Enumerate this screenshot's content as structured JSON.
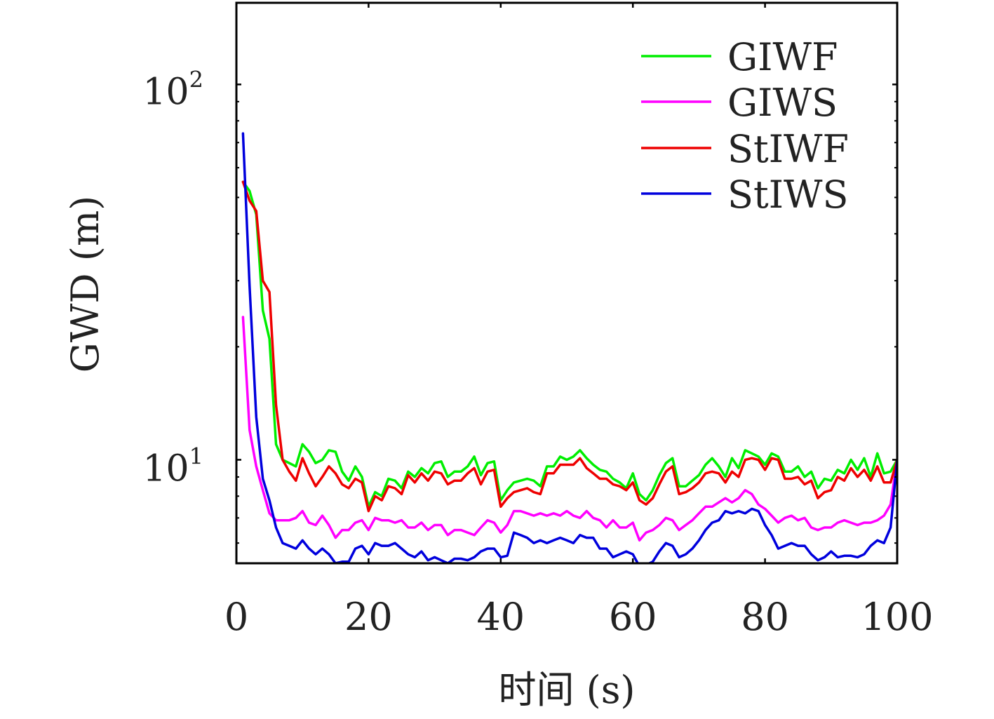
{
  "chart_data": {
    "type": "line",
    "xlabel": "时间 (s)",
    "ylabel": "GWD (m)",
    "xlim": [
      0,
      100
    ],
    "ylim": [
      5.3,
      165
    ],
    "y_scale": "log",
    "x_ticks": [
      0,
      20,
      40,
      60,
      80,
      100
    ],
    "x_tick_labels": [
      "0",
      "20",
      "40",
      "60",
      "80",
      "100"
    ],
    "y_ticks": [
      10,
      100
    ],
    "y_tick_labels": [
      {
        "base": "10",
        "exp": "1"
      },
      {
        "base": "10",
        "exp": "2"
      }
    ],
    "grid": false,
    "legend_position": "top-right",
    "series": [
      {
        "name": "GIWF",
        "color": "#00ee00",
        "x": [
          1,
          2,
          3,
          4,
          5,
          6,
          7,
          8,
          9,
          10,
          11,
          12,
          13,
          14,
          15,
          16,
          17,
          18,
          19,
          20,
          21,
          22,
          23,
          24,
          25,
          26,
          27,
          28,
          29,
          30,
          31,
          32,
          33,
          34,
          35,
          36,
          37,
          38,
          39,
          40,
          41,
          42,
          43,
          44,
          45,
          46,
          47,
          48,
          49,
          50,
          51,
          52,
          53,
          54,
          55,
          56,
          57,
          58,
          59,
          60,
          61,
          62,
          63,
          64,
          65,
          66,
          67,
          68,
          69,
          70,
          71,
          72,
          73,
          74,
          75,
          76,
          77,
          78,
          79,
          80,
          81,
          82,
          83,
          84,
          85,
          86,
          87,
          88,
          89,
          90,
          91,
          92,
          93,
          94,
          95,
          96,
          97,
          98,
          99,
          100
        ],
        "y": [
          55,
          52,
          45,
          25,
          21,
          11,
          10,
          9.8,
          9.6,
          11,
          10.5,
          9.8,
          10,
          10.6,
          10.5,
          9.3,
          8.8,
          9.6,
          9,
          7.5,
          8.2,
          8,
          8.9,
          8.8,
          8.4,
          9.3,
          9,
          9.5,
          9.2,
          9.8,
          9.9,
          9,
          9.3,
          9.3,
          9.6,
          10.2,
          9.1,
          9.8,
          9.9,
          7.8,
          8.3,
          8.7,
          8.8,
          8.9,
          8.8,
          8.5,
          9.6,
          9.6,
          10.2,
          10,
          10.2,
          10.6,
          10.1,
          9.7,
          9.4,
          9.3,
          8.9,
          8.7,
          8.4,
          9.2,
          8.1,
          7.8,
          8.3,
          9.1,
          9.8,
          10.1,
          8.5,
          8.5,
          8.8,
          9.1,
          9.7,
          10.1,
          9.6,
          9,
          10.1,
          9.5,
          10.6,
          10.4,
          10.2,
          9.7,
          10.4,
          10.2,
          9.3,
          9.3,
          9.6,
          9,
          9.3,
          8.4,
          8.9,
          8.8,
          9.4,
          9.2,
          10,
          9.4,
          10.1,
          9,
          10.4,
          9.2,
          9.3,
          10
        ]
      },
      {
        "name": "GIWS",
        "color": "#ff00ff",
        "x": [
          1,
          2,
          3,
          4,
          5,
          6,
          7,
          8,
          9,
          10,
          11,
          12,
          13,
          14,
          15,
          16,
          17,
          18,
          19,
          20,
          21,
          22,
          23,
          24,
          25,
          26,
          27,
          28,
          29,
          30,
          31,
          32,
          33,
          34,
          35,
          36,
          37,
          38,
          39,
          40,
          41,
          42,
          43,
          44,
          45,
          46,
          47,
          48,
          49,
          50,
          51,
          52,
          53,
          54,
          55,
          56,
          57,
          58,
          59,
          60,
          61,
          62,
          63,
          64,
          65,
          66,
          67,
          68,
          69,
          70,
          71,
          72,
          73,
          74,
          75,
          76,
          77,
          78,
          79,
          80,
          81,
          82,
          83,
          84,
          85,
          86,
          87,
          88,
          89,
          90,
          91,
          92,
          93,
          94,
          95,
          96,
          97,
          98,
          99,
          100
        ],
        "y": [
          24,
          12,
          9.6,
          8.3,
          7.2,
          6.9,
          6.9,
          6.9,
          7,
          7.3,
          6.8,
          6.7,
          7.1,
          6.7,
          6.2,
          6.5,
          6.5,
          6.8,
          6.9,
          6.5,
          7,
          6.9,
          6.9,
          6.8,
          6.9,
          6.6,
          6.6,
          6.8,
          6.5,
          6.7,
          6.7,
          6.3,
          6.5,
          6.5,
          6.4,
          6.3,
          6.6,
          6.9,
          6.8,
          6.4,
          6.7,
          7.3,
          7.3,
          7.2,
          7.1,
          7.2,
          7.1,
          7.2,
          7.1,
          7.3,
          7.1,
          7,
          7.3,
          7,
          6.9,
          6.6,
          6.9,
          6.6,
          6.6,
          6.8,
          6.1,
          6.4,
          6.5,
          6.7,
          7,
          6.9,
          6.5,
          6.7,
          6.9,
          7.2,
          7.5,
          7.5,
          7.7,
          7.9,
          7.7,
          7.9,
          8.3,
          8.1,
          7.6,
          7.4,
          7.1,
          6.8,
          7,
          7.1,
          6.9,
          7,
          6.6,
          6.5,
          6.6,
          6.6,
          6.8,
          6.9,
          6.8,
          6.7,
          6.8,
          6.8,
          6.9,
          7.1,
          7.6,
          10
        ]
      },
      {
        "name": "StIWF",
        "color": "#ee0000",
        "x": [
          1,
          2,
          3,
          4,
          5,
          6,
          7,
          8,
          9,
          10,
          11,
          12,
          13,
          14,
          15,
          16,
          17,
          18,
          19,
          20,
          21,
          22,
          23,
          24,
          25,
          26,
          27,
          28,
          29,
          30,
          31,
          32,
          33,
          34,
          35,
          36,
          37,
          38,
          39,
          40,
          41,
          42,
          43,
          44,
          45,
          46,
          47,
          48,
          49,
          50,
          51,
          52,
          53,
          54,
          55,
          56,
          57,
          58,
          59,
          60,
          61,
          62,
          63,
          64,
          65,
          66,
          67,
          68,
          69,
          70,
          71,
          72,
          73,
          74,
          75,
          76,
          77,
          78,
          79,
          80,
          81,
          82,
          83,
          84,
          85,
          86,
          87,
          88,
          89,
          90,
          91,
          92,
          93,
          94,
          95,
          96,
          97,
          98,
          99,
          100
        ],
        "y": [
          55,
          49,
          46,
          30,
          28,
          14,
          10,
          9.3,
          8.8,
          10.1,
          9.2,
          8.5,
          9,
          9.6,
          9.2,
          8.6,
          8.4,
          8.9,
          8.7,
          7.3,
          8,
          7.8,
          8.5,
          8.4,
          8.1,
          9.1,
          8.7,
          9.2,
          8.8,
          9.3,
          9.2,
          8.6,
          8.8,
          8.8,
          9.2,
          9.5,
          8.6,
          9.3,
          9.4,
          7.5,
          7.9,
          8.2,
          8.3,
          8.4,
          8.2,
          8.1,
          9.2,
          9.2,
          9.7,
          9.7,
          9.7,
          10.1,
          9.5,
          9.2,
          8.9,
          8.9,
          8.6,
          8.5,
          8.3,
          8.7,
          7.8,
          7.6,
          7.9,
          8.6,
          9.3,
          9.6,
          8.1,
          8.2,
          8.4,
          8.7,
          9.2,
          9.3,
          9.2,
          8.7,
          9.3,
          9,
          10,
          10.1,
          10,
          9.4,
          10.1,
          10,
          8.9,
          8.9,
          9,
          8.6,
          8.8,
          7.9,
          8.2,
          8.3,
          9,
          8.8,
          9.5,
          9,
          9.4,
          8.8,
          9.6,
          8.7,
          8.7,
          10
        ]
      },
      {
        "name": "StIWS",
        "color": "#0000dd",
        "x": [
          1,
          2,
          3,
          4,
          5,
          6,
          7,
          8,
          9,
          10,
          11,
          12,
          13,
          14,
          15,
          16,
          17,
          18,
          19,
          20,
          21,
          22,
          23,
          24,
          25,
          26,
          27,
          28,
          29,
          30,
          31,
          32,
          33,
          34,
          35,
          36,
          37,
          38,
          39,
          40,
          41,
          42,
          43,
          44,
          45,
          46,
          47,
          48,
          49,
          50,
          51,
          52,
          53,
          54,
          55,
          56,
          57,
          58,
          59,
          60,
          61,
          62,
          63,
          64,
          65,
          66,
          67,
          68,
          69,
          70,
          71,
          72,
          73,
          74,
          75,
          76,
          77,
          78,
          79,
          80,
          81,
          82,
          83,
          84,
          85,
          86,
          87,
          88,
          89,
          90,
          91,
          92,
          93,
          94,
          95,
          96,
          97,
          98,
          99,
          100
        ],
        "y": [
          74,
          29,
          13,
          8.9,
          7.8,
          6.6,
          6,
          5.9,
          5.8,
          6.1,
          5.8,
          5.6,
          5.8,
          5.6,
          5.3,
          5.35,
          5.35,
          5.8,
          5.9,
          5.6,
          6,
          5.9,
          5.9,
          6,
          5.8,
          5.6,
          5.5,
          5.7,
          5.4,
          5.5,
          5.4,
          5.3,
          5.45,
          5.45,
          5.4,
          5.5,
          5.7,
          5.8,
          5.8,
          5.5,
          5.55,
          6.4,
          6.3,
          6.2,
          6,
          6.1,
          6,
          6.1,
          6.2,
          6.1,
          6,
          6.3,
          6.2,
          6.2,
          5.8,
          5.8,
          5.5,
          5.6,
          5.7,
          5.6,
          5.2,
          5.25,
          5.35,
          5.7,
          6,
          5.9,
          5.5,
          5.6,
          5.8,
          6.1,
          6.5,
          6.8,
          6.9,
          7.3,
          7.2,
          7.3,
          7.2,
          7.4,
          7.3,
          6.7,
          6.3,
          5.8,
          5.9,
          6,
          5.9,
          5.9,
          5.6,
          5.4,
          5.5,
          5.7,
          5.5,
          5.55,
          5.55,
          5.5,
          5.6,
          5.9,
          6.1,
          6,
          6.6,
          10
        ]
      }
    ]
  }
}
